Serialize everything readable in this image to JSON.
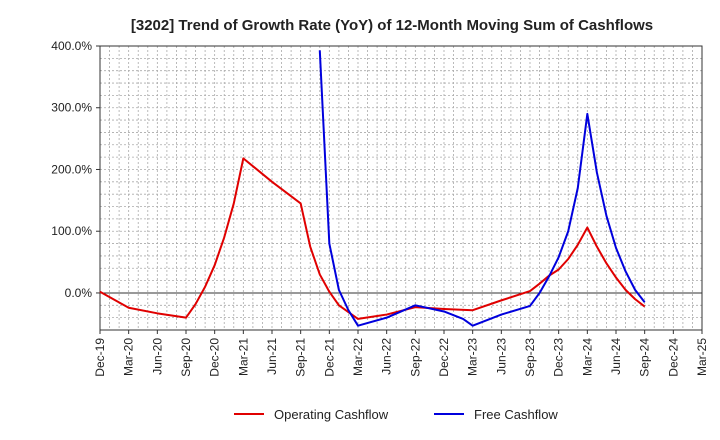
{
  "chart_data": {
    "type": "line",
    "title": "[3202]  Trend of Growth Rate (YoY) of 12-Month Moving Sum of Cashflows",
    "xlabel": "",
    "ylabel": "",
    "ylim": [
      -60,
      400
    ],
    "y_ticks": [
      {
        "value": 400,
        "label": "400.0%"
      },
      {
        "value": 300,
        "label": "300.0%"
      },
      {
        "value": 200,
        "label": "200.0%"
      },
      {
        "value": 100,
        "label": "100.0%"
      },
      {
        "value": 0,
        "label": "0.0%"
      }
    ],
    "x_ticks": [
      "Dec-19",
      "Mar-20",
      "Jun-20",
      "Sep-20",
      "Dec-20",
      "Mar-21",
      "Jun-21",
      "Sep-21",
      "Dec-21",
      "Mar-22",
      "Jun-22",
      "Sep-22",
      "Dec-22",
      "Mar-23",
      "Jun-23",
      "Sep-23",
      "Dec-23",
      "Mar-24",
      "Jun-24",
      "Sep-24",
      "Dec-24",
      "Mar-25"
    ],
    "grid": true,
    "legend_position": "bottom",
    "series": [
      {
        "name": "Operating Cashflow",
        "color": "#e00000",
        "points": [
          [
            "Dec-19",
            2
          ],
          [
            "Mar-20",
            -24
          ],
          [
            "Jun-20",
            -33
          ],
          [
            "Sep-20",
            -40
          ],
          [
            "Oct-20",
            -18
          ],
          [
            "Nov-20",
            10
          ],
          [
            "Dec-20",
            45
          ],
          [
            "Jan-21",
            90
          ],
          [
            "Feb-21",
            145
          ],
          [
            "Mar-21",
            218
          ],
          [
            "Jun-21",
            180
          ],
          [
            "Sep-21",
            145
          ],
          [
            "Oct-21",
            75
          ],
          [
            "Nov-21",
            30
          ],
          [
            "Dec-21",
            2
          ],
          [
            "Jan-22",
            -20
          ],
          [
            "Mar-22",
            -42
          ],
          [
            "Jun-22",
            -35
          ],
          [
            "Sep-22",
            -23
          ],
          [
            "Dec-22",
            -26
          ],
          [
            "Mar-23",
            -28
          ],
          [
            "Jun-23",
            -12
          ],
          [
            "Sep-23",
            3
          ],
          [
            "Oct-23",
            15
          ],
          [
            "Nov-23",
            28
          ],
          [
            "Dec-23",
            38
          ],
          [
            "Jan-24",
            55
          ],
          [
            "Feb-24",
            78
          ],
          [
            "Mar-24",
            106
          ],
          [
            "Apr-24",
            75
          ],
          [
            "May-24",
            48
          ],
          [
            "Jun-24",
            25
          ],
          [
            "Jul-24",
            5
          ],
          [
            "Aug-24",
            -10
          ],
          [
            "Sep-24",
            -22
          ]
        ]
      },
      {
        "name": "Free Cashflow",
        "color": "#0000dd",
        "points": [
          [
            "Nov-21",
            393
          ],
          [
            "Dec-21",
            80
          ],
          [
            "Jan-22",
            5
          ],
          [
            "Feb-22",
            -28
          ],
          [
            "Mar-22",
            -53
          ],
          [
            "Jun-22",
            -40
          ],
          [
            "Sep-22",
            -20
          ],
          [
            "Dec-22",
            -30
          ],
          [
            "Jan-23",
            -36
          ],
          [
            "Feb-23",
            -42
          ],
          [
            "Mar-23",
            -53
          ],
          [
            "Jun-23",
            -35
          ],
          [
            "Sep-23",
            -21
          ],
          [
            "Oct-23",
            0
          ],
          [
            "Nov-23",
            27
          ],
          [
            "Dec-23",
            58
          ],
          [
            "Jan-24",
            100
          ],
          [
            "Feb-24",
            170
          ],
          [
            "Mar-24",
            290
          ],
          [
            "Apr-24",
            195
          ],
          [
            "May-24",
            125
          ],
          [
            "Jun-24",
            73
          ],
          [
            "Jul-24",
            35
          ],
          [
            "Aug-24",
            5
          ],
          [
            "Sep-24",
            -15
          ]
        ]
      }
    ]
  }
}
